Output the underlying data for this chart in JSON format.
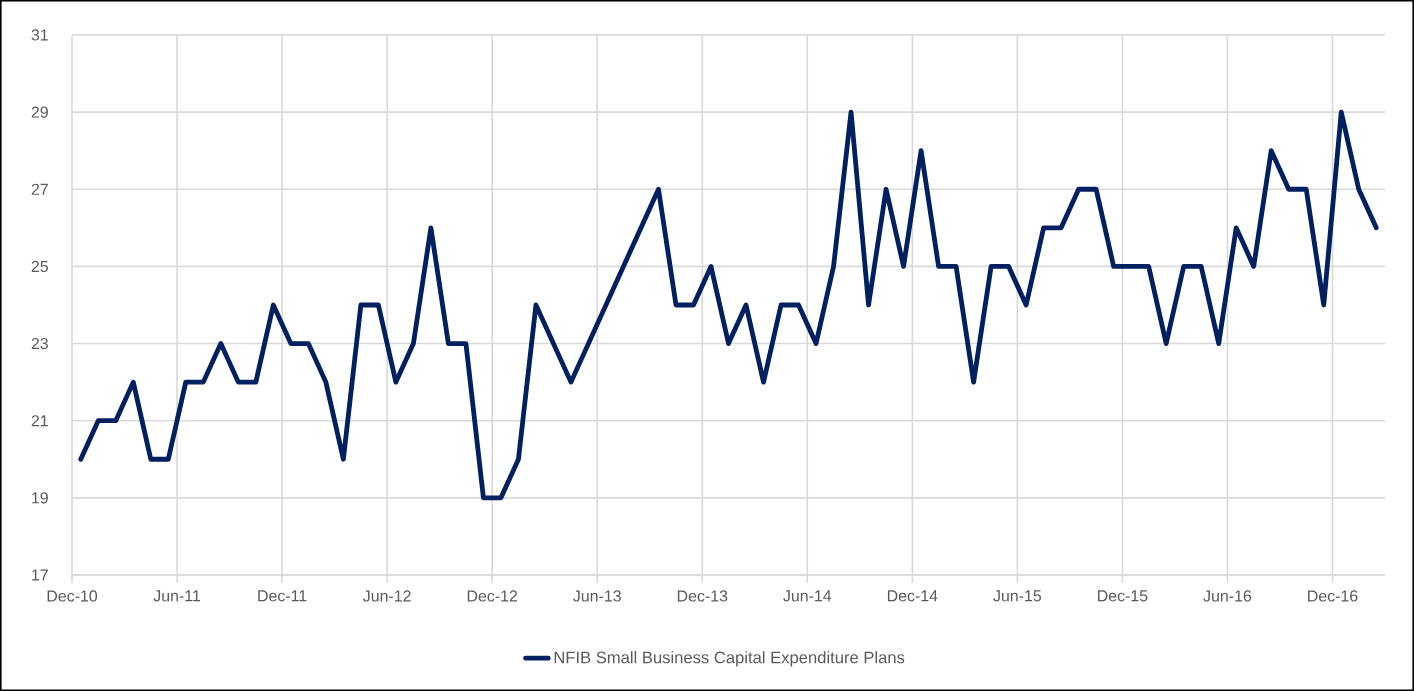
{
  "chart_data": {
    "type": "line",
    "x": [
      "2010-12-16",
      "2011-01-16",
      "2011-02-16",
      "2011-03-16",
      "2011-04-16",
      "2011-05-16",
      "2011-06-16",
      "2011-07-16",
      "2011-08-16",
      "2011-09-16",
      "2011-10-16",
      "2011-11-16",
      "2011-12-16",
      "2012-01-16",
      "2012-02-16",
      "2012-03-16",
      "2012-04-16",
      "2012-05-16",
      "2012-06-16",
      "2012-07-16",
      "2012-08-16",
      "2012-09-16",
      "2012-10-16",
      "2012-11-16",
      "2012-12-16",
      "2013-01-16",
      "2013-02-16",
      "2013-04-16",
      "2013-09-16",
      "2013-10-16",
      "2013-11-16",
      "2013-12-16",
      "2014-01-16",
      "2014-02-16",
      "2014-03-16",
      "2014-04-16",
      "2014-05-16",
      "2014-06-16",
      "2014-07-16",
      "2014-08-16",
      "2014-09-16",
      "2014-10-16",
      "2014-11-16",
      "2014-12-16",
      "2015-01-16",
      "2015-02-16",
      "2015-03-16",
      "2015-04-16",
      "2015-05-16",
      "2015-06-16",
      "2015-07-16",
      "2015-08-16",
      "2015-09-16",
      "2015-10-16",
      "2015-11-16",
      "2015-12-16",
      "2016-01-16",
      "2016-02-16",
      "2016-03-16",
      "2016-04-16",
      "2016-05-16",
      "2016-06-16",
      "2016-07-16",
      "2016-08-16",
      "2016-09-16",
      "2016-10-16",
      "2016-11-16",
      "2016-12-16",
      "2017-01-16",
      "2017-02-16"
    ],
    "series": [
      {
        "name": "NFIB Small Business Capital Expenditure Plans",
        "color": "#002060",
        "values": [
          20,
          21,
          21,
          22,
          20,
          20,
          22,
          22,
          23,
          22,
          22,
          24,
          23,
          23,
          22,
          20,
          24,
          24,
          22,
          23,
          26,
          23,
          23,
          19,
          19,
          20,
          24,
          22,
          27,
          24,
          24,
          25,
          23,
          24,
          22,
          24,
          24,
          23,
          25,
          29,
          24,
          27,
          25,
          28,
          25,
          25,
          22,
          25,
          25,
          24,
          26,
          26,
          27,
          27,
          25,
          25,
          25,
          23,
          25,
          25,
          23,
          26,
          25,
          28,
          27,
          27,
          24,
          29,
          27,
          26
        ]
      }
    ],
    "xlim": [
      "2010-12",
      "2017-03"
    ],
    "xticks": [
      {
        "value": "2010-12",
        "label": "Dec-10"
      },
      {
        "value": "2011-06",
        "label": "Jun-11"
      },
      {
        "value": "2011-12",
        "label": "Dec-11"
      },
      {
        "value": "2012-06",
        "label": "Jun-12"
      },
      {
        "value": "2012-12",
        "label": "Dec-12"
      },
      {
        "value": "2013-06",
        "label": "Jun-13"
      },
      {
        "value": "2013-12",
        "label": "Dec-13"
      },
      {
        "value": "2014-06",
        "label": "Jun-14"
      },
      {
        "value": "2014-12",
        "label": "Dec-14"
      },
      {
        "value": "2015-06",
        "label": "Jun-15"
      },
      {
        "value": "2015-12",
        "label": "Dec-15"
      },
      {
        "value": "2016-06",
        "label": "Jun-16"
      },
      {
        "value": "2016-12",
        "label": "Dec-16"
      }
    ],
    "ylim": [
      17,
      31
    ],
    "yticks": [
      17,
      19,
      21,
      23,
      25,
      27,
      29,
      31
    ],
    "grid": true,
    "legend": "bottom"
  }
}
